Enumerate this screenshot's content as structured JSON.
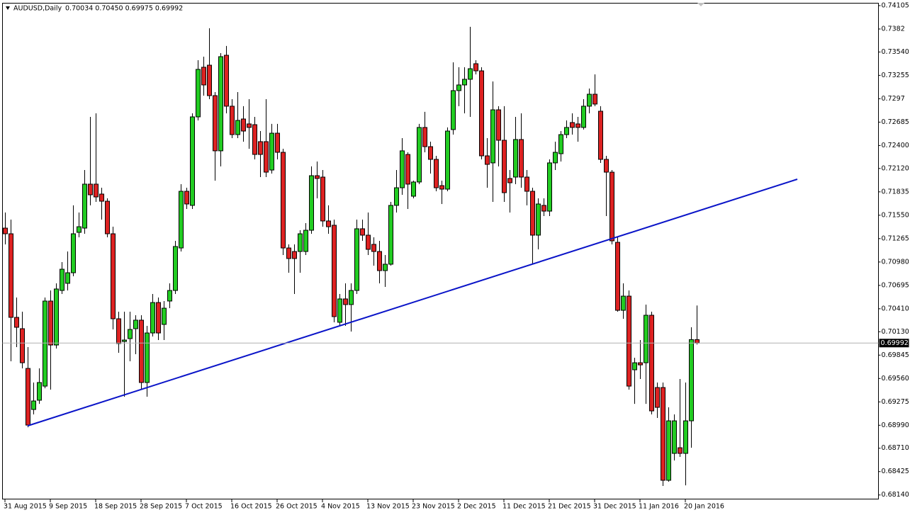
{
  "chart_data": {
    "type": "candlestick",
    "title": "AUDUSD,Daily",
    "ohlc_text": "0.70034 0.70450 0.69975 0.69992",
    "categories": [
      "31 Aug 2015",
      null,
      null,
      null,
      null,
      null,
      null,
      null,
      "9 Sep 2015",
      null,
      null,
      null,
      null,
      null,
      null,
      null,
      "18 Sep 2015",
      null,
      null,
      null,
      null,
      null,
      null,
      null,
      "28 Sep 2015",
      null,
      null,
      null,
      null,
      null,
      null,
      null,
      "7 Oct 2015",
      null,
      null,
      null,
      null,
      null,
      null,
      null,
      "16 Oct 2015",
      null,
      null,
      null,
      null,
      null,
      null,
      null,
      "26 Oct 2015",
      null,
      null,
      null,
      null,
      null,
      null,
      null,
      "4 Nov 2015",
      null,
      null,
      null,
      null,
      null,
      null,
      null,
      "13 Nov 2015",
      null,
      null,
      null,
      null,
      null,
      null,
      null,
      "23 Nov 2015",
      null,
      null,
      null,
      null,
      null,
      null,
      null,
      "2 Dec 2015",
      null,
      null,
      null,
      null,
      null,
      null,
      null,
      "11 Dec 2015",
      null,
      null,
      null,
      null,
      null,
      null,
      null,
      "21 Dec 2015",
      null,
      null,
      null,
      null,
      null,
      null,
      null,
      "31 Dec 2015",
      null,
      null,
      null,
      null,
      null,
      null,
      null,
      "11 Jan 2016",
      null,
      null,
      null,
      null,
      null,
      null,
      null,
      "20 Jan 2016",
      null,
      null
    ],
    "open": [
      0.71393,
      0.71324,
      0.70305,
      0.70167,
      0.69683,
      0.69182,
      0.69295,
      0.69467,
      0.70504,
      0.69968,
      0.70633,
      0.7072,
      0.70849,
      0.71341,
      0.71393,
      0.71929,
      0.71929,
      0.71808,
      0.71721,
      0.71324,
      0.70288,
      0.70011,
      0.70046,
      0.70167,
      0.70271,
      0.69511,
      0.70115,
      0.70486,
      0.70219,
      0.70504,
      0.70633,
      0.71151,
      0.71842,
      0.7167,
      0.72749,
      0.73354,
      0.73379,
      0.73008,
      0.72335,
      0.735,
      0.72879,
      0.72533,
      0.72723,
      0.72663,
      0.72654,
      0.72447,
      0.72447,
      0.72101,
      0.7255,
      0.72317,
      0.71151,
      0.71108,
      0.71108,
      0.71108,
      0.71367,
      0.72032,
      0.72015,
      0.7148,
      0.71428,
      0.70245,
      0.7053,
      0.70461,
      0.70633,
      0.71385,
      0.71307,
      0.71195,
      0.71108,
      0.70875,
      0.70953,
      0.7167,
      0.71885,
      0.72291,
      0.71782,
      0.71955,
      0.7262,
      0.72386,
      0.72231,
      0.71911,
      0.71868,
      0.72594,
      0.73069,
      0.73138,
      0.73207,
      0.73397,
      0.7331,
      0.72274,
      0.72188,
      0.72835,
      0.72464,
      0.71998,
      0.72015,
      0.72473,
      0.72015,
      0.71842,
      0.71307,
      0.7167,
      0.716,
      0.72188,
      0.723,
      0.72533,
      0.7268,
      0.72663,
      0.7262,
      0.72879,
      0.73025,
      0.72818,
      0.72231,
      0.72075,
      0.7122,
      0.70391,
      0.70564,
      0.69666,
      0.69752,
      0.69752,
      0.70331,
      0.6945,
      0.6945,
      0.68319,
      0.68647,
      0.68716,
      0.68647,
      0.69044,
      0.70034
    ],
    "high": [
      0.71583,
      0.71497,
      0.70547,
      0.70374,
      0.69942,
      0.69511,
      0.69683,
      0.70547,
      0.70633,
      0.7072,
      0.70979,
      0.71108,
      0.7167,
      0.71583,
      0.72101,
      0.72749,
      0.72792,
      0.71885,
      0.71756,
      0.7141,
      0.70374,
      0.70374,
      0.70374,
      0.70331,
      0.70331,
      0.70201,
      0.7059,
      0.70547,
      0.70504,
      0.7072,
      0.71238,
      0.71929,
      0.71885,
      0.72792,
      0.7344,
      0.73483,
      0.73829,
      0.73051,
      0.73526,
      0.73613,
      0.72965,
      0.73051,
      0.72879,
      0.72965,
      0.72749,
      0.72576,
      0.72965,
      0.72663,
      0.72663,
      0.7236,
      0.71195,
      0.71195,
      0.71367,
      0.71454,
      0.72145,
      0.72205,
      0.72101,
      0.7167,
      0.71497,
      0.7059,
      0.7072,
      0.7072,
      0.71497,
      0.71497,
      0.71583,
      0.71281,
      0.71238,
      0.71065,
      0.71713,
      0.72101,
      0.7249,
      0.72317,
      0.71972,
      0.72663,
      0.7281,
      0.72447,
      0.72274,
      0.71972,
      0.7262,
      0.73414,
      0.73354,
      0.73354,
      0.73846,
      0.7344,
      0.73354,
      0.7249,
      0.73181,
      0.72879,
      0.72879,
      0.72101,
      0.72749,
      0.72792,
      0.72101,
      0.71885,
      0.71756,
      0.71756,
      0.72231,
      0.72447,
      0.72576,
      0.72706,
      0.72792,
      0.72749,
      0.72965,
      0.73094,
      0.73267,
      0.72879,
      0.72274,
      0.72101,
      0.71281,
      0.7072,
      0.70633,
      0.69813,
      0.70029,
      0.70461,
      0.70374,
      0.69511,
      0.69511,
      0.69208,
      0.69122,
      0.69554,
      0.69511,
      0.70184,
      0.7045
    ],
    "low": [
      0.71195,
      0.6977,
      0.69942,
      0.69683,
      0.68966,
      0.69122,
      0.69251,
      0.69441,
      0.69424,
      0.69925,
      0.7059,
      0.70633,
      0.70806,
      0.71281,
      0.71324,
      0.7167,
      0.71713,
      0.71497,
      0.71281,
      0.70158,
      0.69873,
      0.69338,
      0.6977,
      0.69856,
      0.69424,
      0.69338,
      0.70072,
      0.70029,
      0.70029,
      0.70417,
      0.7059,
      0.71108,
      0.71626,
      0.71626,
      0.72706,
      0.73008,
      0.72965,
      0.71972,
      0.72145,
      0.72792,
      0.7249,
      0.7249,
      0.72447,
      0.7236,
      0.72231,
      0.72015,
      0.72015,
      0.72058,
      0.72231,
      0.71065,
      0.70849,
      0.7059,
      0.70849,
      0.71065,
      0.71324,
      0.71756,
      0.7141,
      0.71324,
      0.70245,
      0.70201,
      0.70201,
      0.70132,
      0.7059,
      0.71238,
      0.71065,
      0.70935,
      0.7072,
      0.70676,
      0.70935,
      0.71583,
      0.71799,
      0.71626,
      0.71756,
      0.71929,
      0.72317,
      0.72058,
      0.71842,
      0.71687,
      0.71842,
      0.72533,
      0.72879,
      0.72792,
      0.72749,
      0.73267,
      0.72231,
      0.71885,
      0.71713,
      0.72145,
      0.71713,
      0.71583,
      0.71929,
      0.71885,
      0.7167,
      0.70961,
      0.71134,
      0.7154,
      0.7154,
      0.72101,
      0.72205,
      0.7249,
      0.72533,
      0.72447,
      0.72594,
      0.72792,
      0.72879,
      0.72188,
      0.7154,
      0.71195,
      0.70374,
      0.70288,
      0.69424,
      0.69251,
      0.69554,
      0.69251,
      0.69122,
      0.69079,
      0.6825,
      0.68302,
      0.68561,
      0.68604,
      0.68258,
      0.68716,
      0.69975
    ],
    "close": [
      0.71324,
      0.70305,
      0.70184,
      0.69752,
      0.68992,
      0.69286,
      0.69511,
      0.70504,
      0.69968,
      0.70651,
      0.70892,
      0.70849,
      0.71324,
      0.7141,
      0.71929,
      0.71799,
      0.71773,
      0.71721,
      0.71324,
      0.70288,
      0.69986,
      0.70029,
      0.70158,
      0.70271,
      0.69511,
      0.70115,
      0.70486,
      0.70115,
      0.70417,
      0.70633,
      0.71169,
      0.71842,
      0.71687,
      0.72749,
      0.73328,
      0.73138,
      0.73008,
      0.72335,
      0.73483,
      0.72879,
      0.72533,
      0.72706,
      0.72576,
      0.7262,
      0.72291,
      0.72291,
      0.72075,
      0.7255,
      0.72317,
      0.71151,
      0.71022,
      0.71022,
      0.71324,
      0.71367,
      0.72032,
      0.71998,
      0.7148,
      0.7141,
      0.70314,
      0.7053,
      0.70461,
      0.70633,
      0.71385,
      0.71307,
      0.71134,
      0.71108,
      0.70875,
      0.70953,
      0.7167,
      0.71885,
      0.72335,
      0.71929,
      0.71955,
      0.7262,
      0.72386,
      0.72231,
      0.71885,
      0.71868,
      0.72576,
      0.73069,
      0.73138,
      0.73207,
      0.73336,
      0.7331,
      0.72274,
      0.7217,
      0.72835,
      0.72464,
      0.71825,
      0.71946,
      0.72473,
      0.72015,
      0.71842,
      0.71307,
      0.71687,
      0.716,
      0.72188,
      0.72317,
      0.72533,
      0.7262,
      0.7262,
      0.7262,
      0.72879,
      0.73025,
      0.72905,
      0.72231,
      0.72075,
      0.71238,
      0.70391,
      0.70564,
      0.69467,
      0.69752,
      0.69726,
      0.70331,
      0.69165,
      0.69208,
      0.68319,
      0.69044,
      0.69044,
      0.68647,
      0.69044,
      0.70034,
      0.69992
    ],
    "up_color": "#22cc22",
    "down_color": "#dd2222",
    "ylim": [
      0.68086,
      0.74139
    ],
    "yticks": [
      0.74105,
      0.7382,
      {
        "value": 0.7354,
        "label": "0.73540"
      },
      0.73255,
      0.7297,
      0.72685,
      {
        "value": 0.724,
        "label": "0.72400"
      },
      {
        "value": 0.7212,
        "label": "0.72120"
      },
      0.71835,
      {
        "value": 0.7155,
        "label": "0.71550"
      },
      0.71265,
      {
        "value": 0.7098,
        "label": "0.70980"
      },
      0.70695,
      {
        "value": 0.7041,
        "label": "0.70410"
      },
      {
        "value": 0.7013,
        "label": "0.70130"
      },
      0.69845,
      {
        "value": 0.6956,
        "label": "0.69560"
      },
      0.69275,
      {
        "value": 0.6899,
        "label": "0.68990"
      },
      {
        "value": 0.6871,
        "label": "0.68710"
      },
      0.68425,
      {
        "value": 0.6814,
        "label": "0.68140"
      }
    ],
    "trendline": {
      "x": [
        4,
        139.75
      ],
      "y": [
        0.68983,
        0.71989
      ],
      "color": "#0a14c8"
    }
  }
}
